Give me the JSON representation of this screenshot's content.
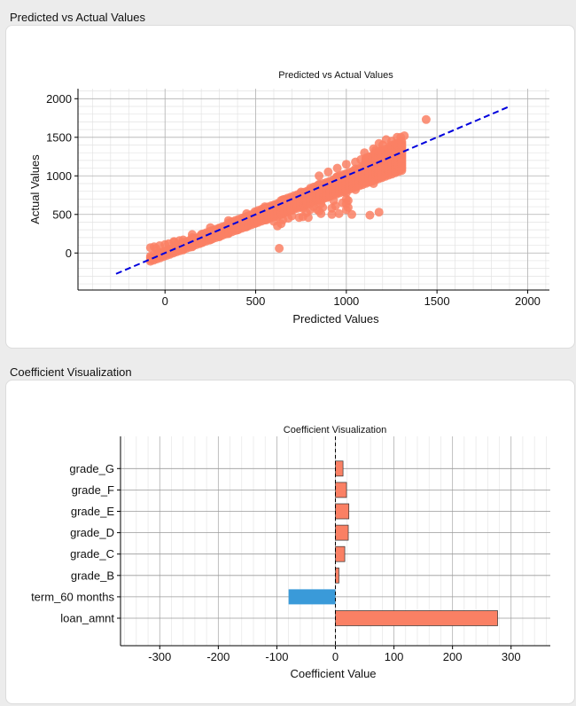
{
  "sections": [
    {
      "title": "Predicted vs Actual Values"
    },
    {
      "title": "Coefficient Visualization"
    }
  ],
  "chart_data": [
    {
      "type": "scatter",
      "title": "Predicted vs Actual Values",
      "xlabel": "Predicted Values",
      "ylabel": "Actual Values",
      "xlim": [
        -480,
        2120
      ],
      "ylim": [
        -480,
        2130
      ],
      "xticks": [
        0,
        500,
        1000,
        1500,
        2000
      ],
      "yticks": [
        0,
        500,
        1000,
        1500,
        2000
      ],
      "grid": true,
      "point_color": "#fa8064",
      "series": [
        {
          "points": [
            [
              -80,
              70
            ],
            [
              -60,
              80
            ],
            [
              -30,
              95
            ],
            [
              0,
              110
            ],
            [
              20,
              120
            ],
            [
              50,
              140
            ],
            [
              80,
              160
            ],
            [
              100,
              170
            ],
            [
              150,
              200
            ],
            [
              200,
              240
            ],
            [
              250,
              280
            ],
            [
              300,
              320
            ],
            [
              350,
              360
            ],
            [
              400,
              410
            ],
            [
              450,
              450
            ],
            [
              500,
              500
            ],
            [
              550,
              540
            ],
            [
              600,
              590
            ],
            [
              650,
              640
            ],
            [
              700,
              690
            ],
            [
              750,
              740
            ],
            [
              800,
              790
            ],
            [
              850,
              840
            ],
            [
              900,
              890
            ],
            [
              950,
              940
            ],
            [
              1000,
              990
            ],
            [
              1050,
              1040
            ],
            [
              1100,
              1080
            ],
            [
              1150,
              1120
            ],
            [
              1200,
              1160
            ],
            [
              1250,
              1200
            ],
            [
              1300,
              1250
            ],
            [
              0,
              10
            ],
            [
              50,
              20
            ],
            [
              100,
              40
            ],
            [
              150,
              80
            ],
            [
              200,
              130
            ],
            [
              250,
              170
            ],
            [
              300,
              210
            ],
            [
              350,
              250
            ],
            [
              400,
              300
            ],
            [
              450,
              340
            ],
            [
              500,
              390
            ],
            [
              550,
              430
            ],
            [
              600,
              470
            ],
            [
              650,
              510
            ],
            [
              700,
              560
            ],
            [
              750,
              600
            ],
            [
              800,
              650
            ],
            [
              850,
              700
            ],
            [
              900,
              750
            ],
            [
              950,
              800
            ],
            [
              1000,
              850
            ],
            [
              1050,
              900
            ],
            [
              1100,
              960
            ],
            [
              1150,
              1020
            ],
            [
              1200,
              1090
            ],
            [
              1250,
              1150
            ],
            [
              1300,
              1220
            ],
            [
              -50,
              60
            ],
            [
              50,
              150
            ],
            [
              150,
              240
            ],
            [
              250,
              330
            ],
            [
              350,
              420
            ],
            [
              450,
              510
            ],
            [
              550,
              600
            ],
            [
              650,
              690
            ],
            [
              750,
              790
            ],
            [
              850,
              890
            ],
            [
              950,
              990
            ],
            [
              1050,
              1090
            ],
            [
              1150,
              1200
            ],
            [
              1250,
              1320
            ],
            [
              1300,
              1400
            ],
            [
              1100,
              1300
            ],
            [
              1150,
              1350
            ],
            [
              1200,
              1400
            ],
            [
              1250,
              1450
            ],
            [
              1300,
              1500
            ],
            [
              1320,
              1520
            ],
            [
              1180,
              1420
            ],
            [
              1220,
              1470
            ],
            [
              1280,
              1500
            ],
            [
              1160,
              1330
            ],
            [
              1240,
              1380
            ],
            [
              900,
              1050
            ],
            [
              950,
              1100
            ],
            [
              1000,
              1150
            ],
            [
              1050,
              1180
            ],
            [
              1080,
              1210
            ],
            [
              850,
              1000
            ],
            [
              950,
              800
            ],
            [
              1000,
              780
            ],
            [
              1050,
              820
            ],
            [
              900,
              730
            ],
            [
              1000,
              700
            ],
            [
              980,
              650
            ],
            [
              1010,
              680
            ],
            [
              700,
              620
            ],
            [
              720,
              600
            ],
            [
              760,
              580
            ],
            [
              800,
              560
            ],
            [
              820,
              600
            ],
            [
              780,
              520
            ],
            [
              840,
              560
            ],
            [
              860,
              640
            ],
            [
              1000,
              560
            ],
            [
              1030,
              500
            ],
            [
              960,
              510
            ],
            [
              1010,
              590
            ],
            [
              1130,
              490
            ],
            [
              1180,
              530
            ],
            [
              600,
              410
            ],
            [
              640,
              380
            ],
            [
              620,
              470
            ],
            [
              680,
              450
            ],
            [
              700,
              480
            ],
            [
              760,
              470
            ],
            [
              790,
              460
            ],
            [
              650,
              430
            ],
            [
              470,
              380
            ],
            [
              560,
              430
            ],
            [
              560,
              480
            ],
            [
              620,
              350
            ],
            [
              640,
              500
            ],
            [
              930,
              680
            ],
            [
              940,
              610
            ],
            [
              870,
              590
            ],
            [
              860,
              510
            ],
            [
              920,
              580
            ],
            [
              1000,
              640
            ],
            [
              1100,
              950
            ],
            [
              1150,
              900
            ],
            [
              1200,
              1000
            ],
            [
              1440,
              1730
            ],
            [
              630,
              60
            ],
            [
              740,
              460
            ],
            [
              850,
              545
            ],
            [
              920,
              500
            ]
          ]
        }
      ],
      "reference_line": {
        "x": [
          -270,
          1900
        ],
        "y": [
          -270,
          1900
        ],
        "color": "#0000dd",
        "style": "dashed"
      }
    },
    {
      "type": "bar",
      "orientation": "horizontal",
      "title": "Coefficient Visualization",
      "xlabel": "Coefficient Value",
      "ylabel": "",
      "xlim": [
        -367,
        367
      ],
      "xticks": [
        -300,
        -200,
        -100,
        0,
        100,
        200,
        300
      ],
      "grid": true,
      "categories": [
        "loan_amnt",
        "term_60 months",
        "grade_B",
        "grade_C",
        "grade_D",
        "grade_E",
        "grade_F",
        "grade_G"
      ],
      "values": [
        277,
        -80,
        6,
        16,
        22,
        23,
        19,
        13
      ],
      "colors": {
        "positive": "#fa8064",
        "negative": "#3a9ad9"
      }
    }
  ]
}
